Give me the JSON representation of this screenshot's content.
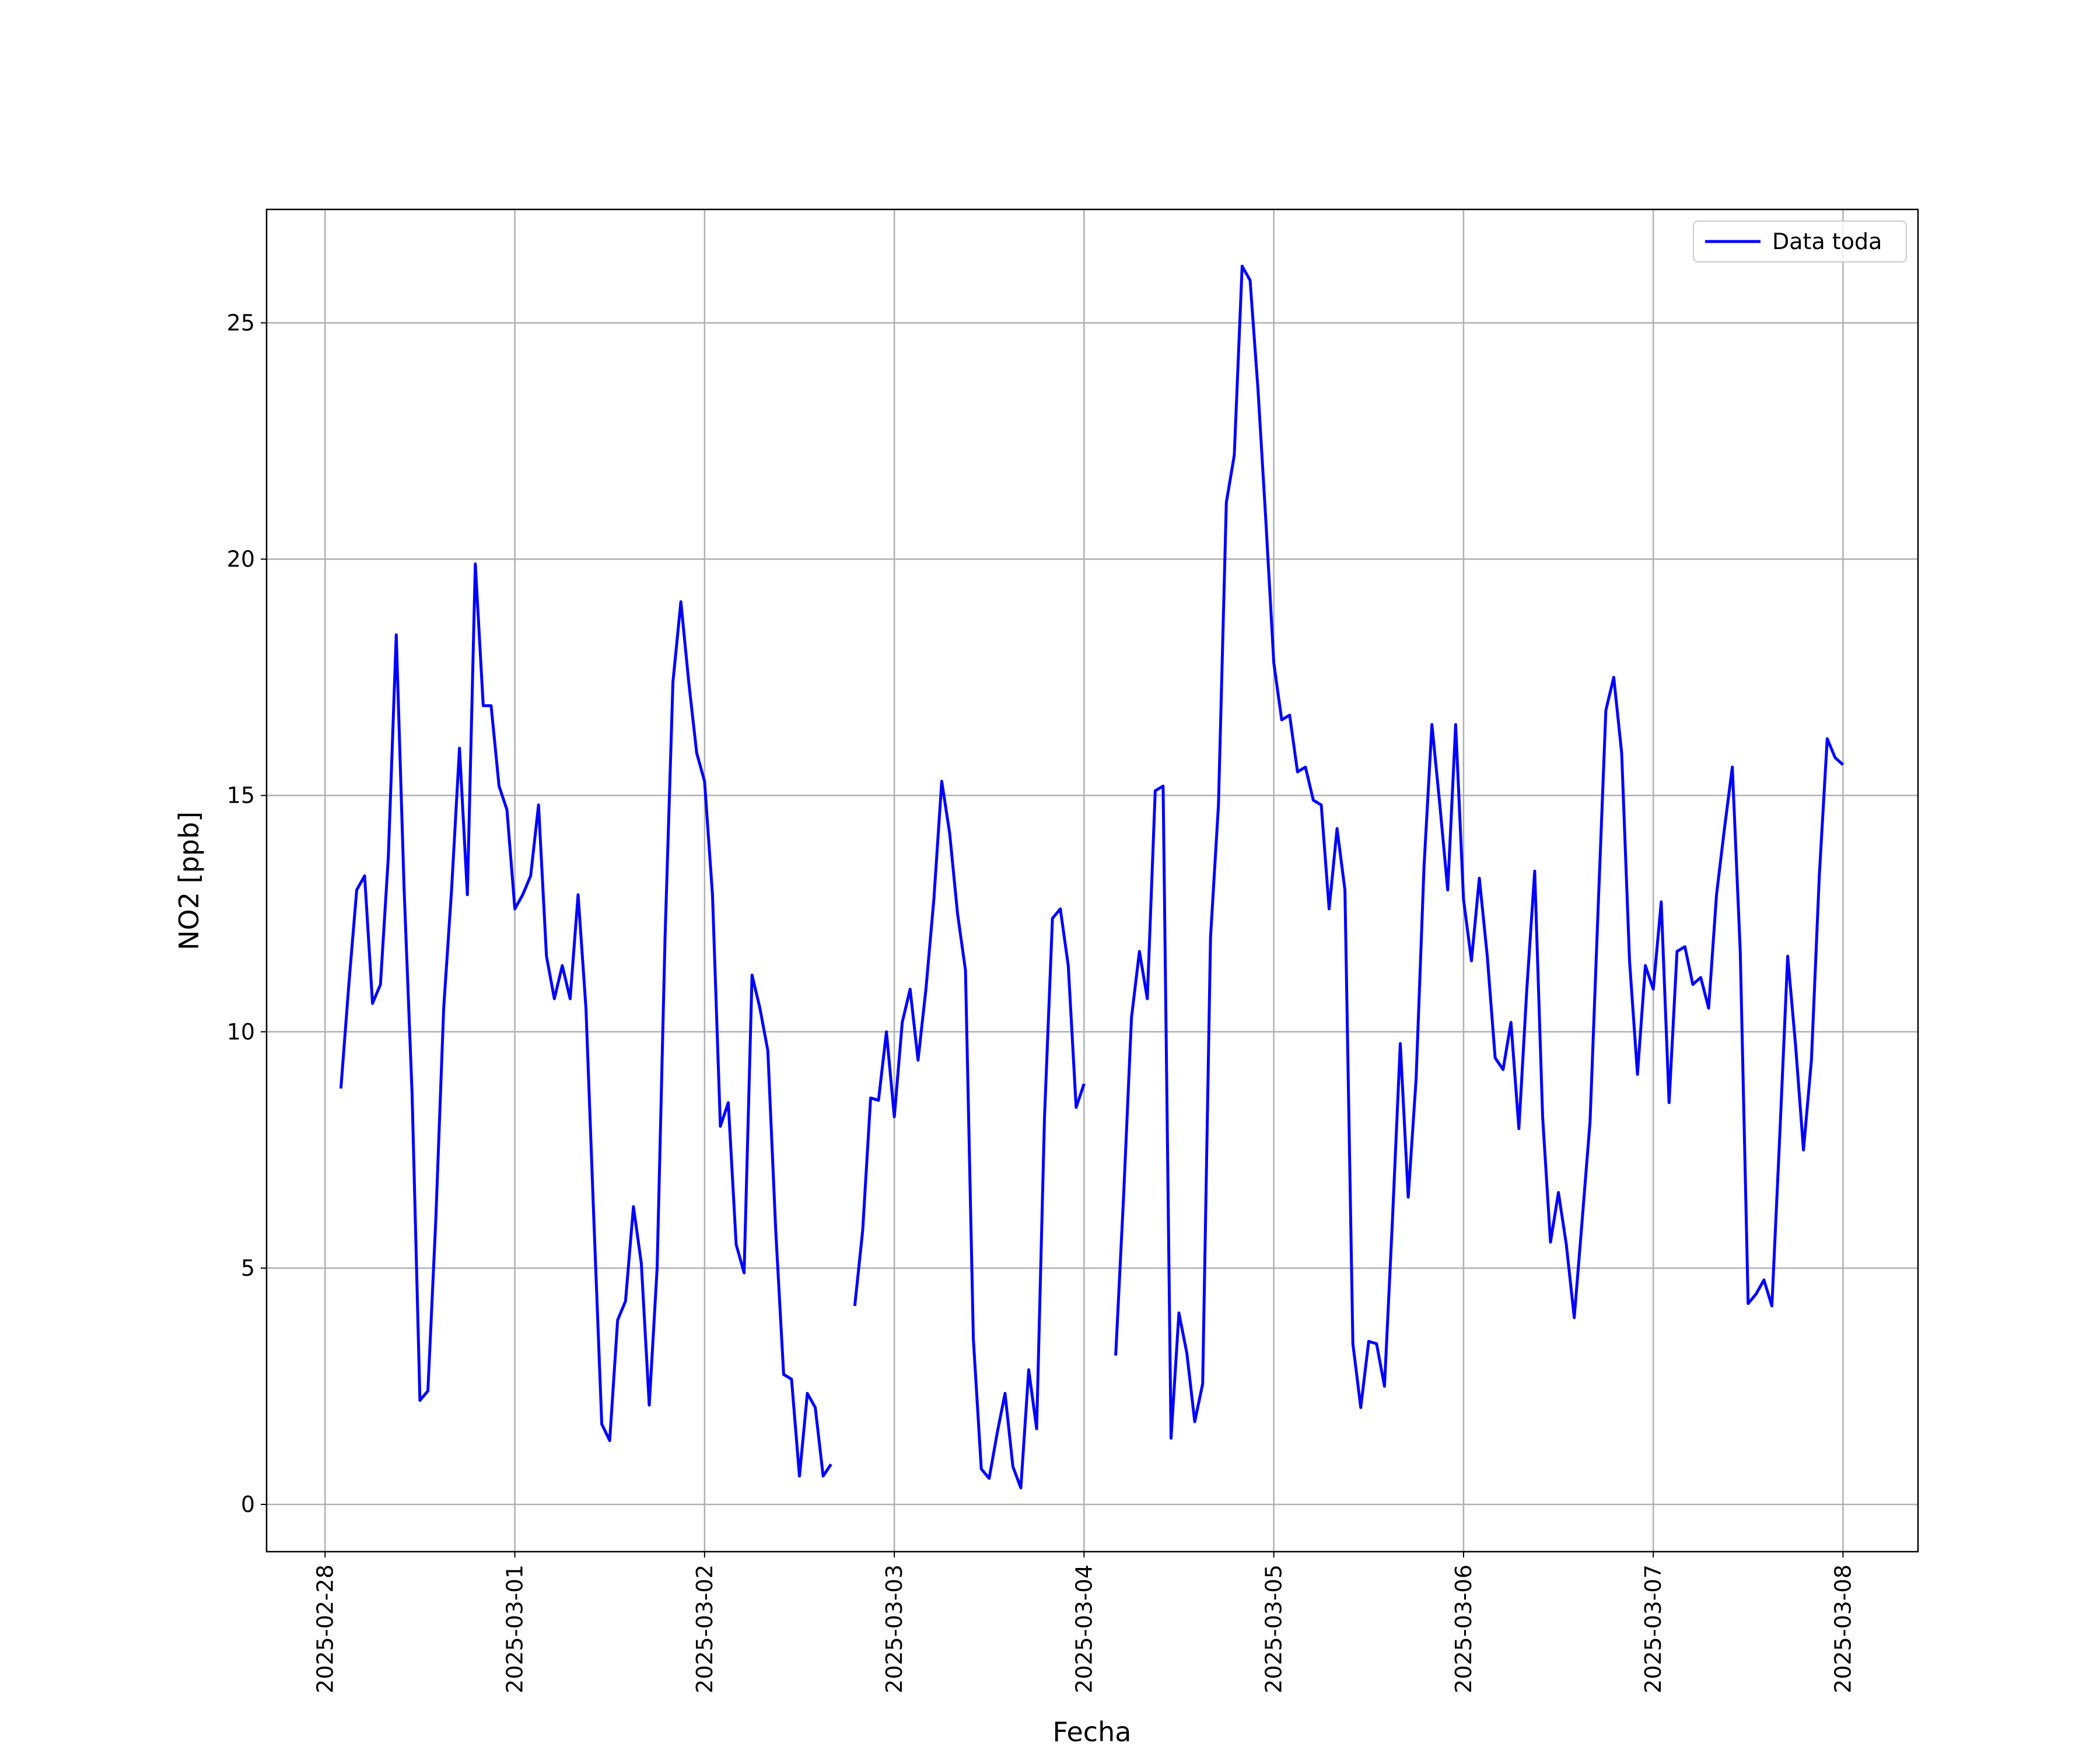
{
  "chart_data": {
    "type": "line",
    "xlabel": "Fecha",
    "ylabel": "NO2 [ppb]",
    "x": [
      "2025-02-28T02:00",
      "2025-02-28T03:00",
      "2025-02-28T04:00",
      "2025-02-28T05:00",
      "2025-02-28T06:00",
      "2025-02-28T07:00",
      "2025-02-28T08:00",
      "2025-02-28T09:00",
      "2025-02-28T10:00",
      "2025-02-28T11:00",
      "2025-02-28T12:00",
      "2025-02-28T13:00",
      "2025-02-28T14:00",
      "2025-02-28T15:00",
      "2025-02-28T16:00",
      "2025-02-28T17:00",
      "2025-02-28T18:00",
      "2025-02-28T19:00",
      "2025-02-28T20:00",
      "2025-02-28T21:00",
      "2025-02-28T22:00",
      "2025-02-28T23:00",
      "2025-03-01T00:00",
      "2025-03-01T01:00",
      "2025-03-01T02:00",
      "2025-03-01T03:00",
      "2025-03-01T04:00",
      "2025-03-01T05:00",
      "2025-03-01T06:00",
      "2025-03-01T07:00",
      "2025-03-01T08:00",
      "2025-03-01T09:00",
      "2025-03-01T10:00",
      "2025-03-01T11:00",
      "2025-03-01T12:00",
      "2025-03-01T13:00",
      "2025-03-01T14:00",
      "2025-03-01T15:00",
      "2025-03-01T16:00",
      "2025-03-01T17:00",
      "2025-03-01T18:00",
      "2025-03-01T19:00",
      "2025-03-01T20:00",
      "2025-03-01T21:00",
      "2025-03-01T22:00",
      "2025-03-01T23:00",
      "2025-03-02T00:00",
      "2025-03-02T01:00",
      "2025-03-02T02:00",
      "2025-03-02T03:00",
      "2025-03-02T04:00",
      "2025-03-02T05:00",
      "2025-03-02T06:00",
      "2025-03-02T07:00",
      "2025-03-02T08:00",
      "2025-03-02T09:00",
      "2025-03-02T10:00",
      "2025-03-02T11:00",
      "2025-03-02T12:00",
      "2025-03-02T13:00",
      "2025-03-02T14:00",
      "2025-03-02T15:00",
      "2025-03-02T16:00",
      "2025-03-02T17:00",
      "2025-03-02T18:00",
      "2025-03-02T19:00",
      "2025-03-02T20:00",
      "2025-03-02T21:00",
      "2025-03-02T22:00",
      "2025-03-02T23:00",
      "2025-03-03T00:00",
      "2025-03-03T01:00",
      "2025-03-03T02:00",
      "2025-03-03T03:00",
      "2025-03-03T04:00",
      "2025-03-03T05:00",
      "2025-03-03T06:00",
      "2025-03-03T07:00",
      "2025-03-03T08:00",
      "2025-03-03T09:00",
      "2025-03-03T10:00",
      "2025-03-03T11:00",
      "2025-03-03T12:00",
      "2025-03-03T13:00",
      "2025-03-03T14:00",
      "2025-03-03T15:00",
      "2025-03-03T16:00",
      "2025-03-03T17:00",
      "2025-03-03T18:00",
      "2025-03-03T19:00",
      "2025-03-03T20:00",
      "2025-03-03T21:00",
      "2025-03-03T22:00",
      "2025-03-03T23:00",
      "2025-03-04T00:00",
      "2025-03-04T01:00",
      "2025-03-04T02:00",
      "2025-03-04T03:00",
      "2025-03-04T04:00",
      "2025-03-04T05:00",
      "2025-03-04T06:00",
      "2025-03-04T07:00",
      "2025-03-04T08:00",
      "2025-03-04T09:00",
      "2025-03-04T10:00",
      "2025-03-04T11:00",
      "2025-03-04T12:00",
      "2025-03-04T13:00",
      "2025-03-04T14:00",
      "2025-03-04T15:00",
      "2025-03-04T16:00",
      "2025-03-04T17:00",
      "2025-03-04T18:00",
      "2025-03-04T19:00",
      "2025-03-04T20:00",
      "2025-03-04T21:00",
      "2025-03-04T22:00",
      "2025-03-04T23:00",
      "2025-03-05T00:00",
      "2025-03-05T01:00",
      "2025-03-05T02:00",
      "2025-03-05T03:00",
      "2025-03-05T04:00",
      "2025-03-05T05:00",
      "2025-03-05T06:00",
      "2025-03-05T07:00",
      "2025-03-05T08:00",
      "2025-03-05T09:00",
      "2025-03-05T10:00",
      "2025-03-05T11:00",
      "2025-03-05T12:00",
      "2025-03-05T13:00",
      "2025-03-05T14:00",
      "2025-03-05T15:00",
      "2025-03-05T16:00",
      "2025-03-05T17:00",
      "2025-03-05T18:00",
      "2025-03-05T19:00",
      "2025-03-05T20:00",
      "2025-03-05T21:00",
      "2025-03-05T22:00",
      "2025-03-05T23:00",
      "2025-03-06T00:00",
      "2025-03-06T01:00",
      "2025-03-06T02:00",
      "2025-03-06T03:00",
      "2025-03-06T04:00",
      "2025-03-06T05:00",
      "2025-03-06T06:00",
      "2025-03-06T07:00",
      "2025-03-06T08:00",
      "2025-03-06T09:00",
      "2025-03-06T10:00",
      "2025-03-06T11:00",
      "2025-03-06T12:00",
      "2025-03-06T13:00",
      "2025-03-06T14:00",
      "2025-03-06T15:00",
      "2025-03-06T16:00",
      "2025-03-06T17:00",
      "2025-03-06T18:00",
      "2025-03-06T19:00",
      "2025-03-06T20:00",
      "2025-03-06T21:00",
      "2025-03-06T22:00",
      "2025-03-06T23:00",
      "2025-03-07T00:00",
      "2025-03-07T01:00",
      "2025-03-07T02:00",
      "2025-03-07T03:00",
      "2025-03-07T04:00",
      "2025-03-07T05:00",
      "2025-03-07T06:00",
      "2025-03-07T07:00",
      "2025-03-07T08:00",
      "2025-03-07T09:00",
      "2025-03-07T10:00",
      "2025-03-07T11:00",
      "2025-03-07T12:00",
      "2025-03-07T13:00",
      "2025-03-07T14:00",
      "2025-03-07T15:00",
      "2025-03-07T16:00",
      "2025-03-07T17:00",
      "2025-03-07T18:00",
      "2025-03-07T19:00",
      "2025-03-07T20:00",
      "2025-03-07T21:00",
      "2025-03-07T22:00",
      "2025-03-07T23:00",
      "2025-03-08T00:00"
    ],
    "series": [
      {
        "name": "Data toda",
        "color": "#0000ff",
        "values": [
          8.8,
          11,
          13.0,
          13.3,
          10.6,
          11.0,
          13.7,
          18.4,
          13,
          8.7,
          2.2,
          2.4,
          6,
          10.5,
          13,
          16.0,
          12.9,
          19.9,
          16.9,
          16.9,
          15.2,
          14.7,
          12.6,
          12.9,
          13.3,
          14.8,
          11.6,
          10.7,
          11.4,
          10.7,
          12.9,
          10.5,
          6,
          1.7,
          1.35,
          3.9,
          4.3,
          6.3,
          5.1,
          2.1,
          5,
          12,
          17.4,
          19.1,
          17.4,
          15.9,
          15.3,
          12.9,
          8.0,
          8.5,
          5.5,
          4.9,
          11.2,
          10.5,
          9.6,
          5.8,
          2.75,
          2.65,
          0.6,
          2.35,
          2.05,
          0.6,
          0.85,
          null,
          null,
          4.2,
          5.8,
          8.6,
          8.55,
          10.0,
          8.2,
          10.2,
          10.9,
          9.4,
          10.9,
          12.8,
          15.3,
          14.2,
          12.5,
          11.3,
          3.5,
          0.75,
          0.55,
          1.5,
          2.35,
          0.8,
          0.35,
          2.85,
          1.6,
          8.2,
          12.4,
          12.6,
          11.4,
          8.4,
          8.9,
          null,
          null,
          null,
          3.15,
          6.5,
          10.3,
          11.7,
          10.7,
          15.1,
          15.2,
          1.4,
          4.05,
          3.2,
          1.75,
          2.55,
          12.0,
          14.8,
          21.2,
          22.2,
          26.2,
          25.9,
          23.6,
          20.8,
          17.8,
          16.6,
          16.7,
          15.5,
          15.6,
          14.9,
          14.8,
          12.6,
          14.3,
          13.0,
          3.4,
          2.05,
          3.45,
          3.4,
          2.5,
          6,
          9.75,
          6.5,
          9,
          13.5,
          16.5,
          14.8,
          13.0,
          16.5,
          12.8,
          11.5,
          13.25,
          11.6,
          9.45,
          9.2,
          10.2,
          7.95,
          10.9,
          13.4,
          8.2,
          5.55,
          6.6,
          5.5,
          3.95,
          6.0,
          8.1,
          12.5,
          16.8,
          17.5,
          15.9,
          11.5,
          9.1,
          11.4,
          10.9,
          12.75,
          8.5,
          11.7,
          11.8,
          11.0,
          11.15,
          10.5,
          12.9,
          14.3,
          15.6,
          11.7,
          4.25,
          4.45,
          4.75,
          4.2,
          7.8,
          11.6,
          9.7,
          7.5,
          9.4,
          13.3,
          16.2,
          15.8,
          15.65
        ]
      }
    ],
    "xlim": [
      "2025-02-27T16:36",
      "2025-03-08T09:29"
    ],
    "xticks": [
      "2025-02-28",
      "2025-03-01",
      "2025-03-02",
      "2025-03-03",
      "2025-03-04",
      "2025-03-05",
      "2025-03-06",
      "2025-03-07",
      "2025-03-08"
    ],
    "ylim": [
      -1,
      27.4
    ],
    "yticks": [
      0,
      5,
      10,
      15,
      20,
      25
    ],
    "grid": true,
    "legend": "upper right"
  }
}
